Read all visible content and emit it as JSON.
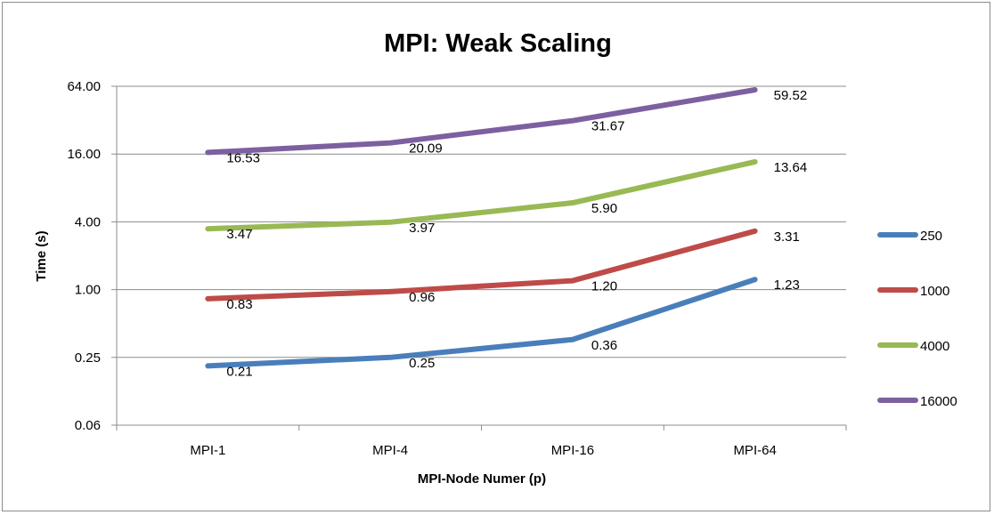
{
  "chart_data": {
    "type": "line",
    "title": "MPI: Weak Scaling",
    "xlabel": "MPI-Node Numer (p)",
    "ylabel": "Time (s)",
    "categories": [
      "MPI-1",
      "MPI-4",
      "MPI-16",
      "MPI-64"
    ],
    "y_scale": "log2",
    "ylim": [
      0.0625,
      64
    ],
    "y_ticks": [
      0.0625,
      0.25,
      1,
      4,
      16,
      64
    ],
    "y_tick_labels": [
      "0.06",
      "0.25",
      "1.00",
      "4.00",
      "16.00",
      "64.00"
    ],
    "grid": true,
    "legend_position": "right",
    "series": [
      {
        "name": "250",
        "values": [
          0.21,
          0.25,
          0.36,
          1.23
        ],
        "labels": [
          "0.21",
          "0.25",
          "0.36",
          "1.23"
        ],
        "color": "#4a7ebb"
      },
      {
        "name": "1000",
        "values": [
          0.83,
          0.96,
          1.2,
          3.31
        ],
        "labels": [
          "0.83",
          "0.96",
          "1.20",
          "3.31"
        ],
        "color": "#be4b48"
      },
      {
        "name": "4000",
        "values": [
          3.47,
          3.97,
          5.9,
          13.64
        ],
        "labels": [
          "3.47",
          "3.97",
          "5.90",
          "13.64"
        ],
        "color": "#98b954"
      },
      {
        "name": "16000",
        "values": [
          16.53,
          20.09,
          31.67,
          59.52
        ],
        "labels": [
          "16.53",
          "20.09",
          "31.67",
          "59.52"
        ],
        "color": "#7d60a0"
      }
    ]
  }
}
